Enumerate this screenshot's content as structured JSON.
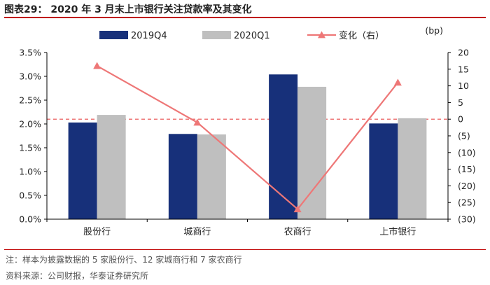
{
  "title": "图表29： 2020 年 3 月末上市银行关注贷款率及其变化",
  "note": "注：样本为披露数据的 5 家股份行、12 家城商行和 7 家农商行",
  "source": "资料来源：公司财报，华泰证券研究所",
  "colors": {
    "q4": "#17307a",
    "q1": "#bfbfbf",
    "change": "#ee7777",
    "rule": "#c00000"
  },
  "chart_data": {
    "type": "bar",
    "categories": [
      "股份行",
      "城商行",
      "农商行",
      "上市银行"
    ],
    "series": [
      {
        "name": "2019Q4",
        "type": "bar",
        "axis": "left",
        "values": [
          2.03,
          1.79,
          3.04,
          2.01
        ]
      },
      {
        "name": "2020Q1",
        "type": "bar",
        "axis": "left",
        "values": [
          2.19,
          1.78,
          2.78,
          2.12
        ]
      },
      {
        "name": "变化（右）",
        "type": "line",
        "axis": "right",
        "values": [
          16,
          -1,
          -27,
          11
        ]
      }
    ],
    "y_left": {
      "min": 0,
      "max": 3.5,
      "ticks": [
        "0.0%",
        "0.5%",
        "1.0%",
        "1.5%",
        "2.0%",
        "2.5%",
        "3.0%",
        "3.5%"
      ]
    },
    "y_right": {
      "min": -30,
      "max": 20,
      "ticks": [
        "20",
        "15",
        "10",
        "5",
        "0",
        "(5)",
        "(10)",
        "(15)",
        "(20)",
        "(25)",
        "(30)"
      ],
      "unit": "(bp)"
    },
    "legend_position": "top",
    "grid": false,
    "reference_line": {
      "axis": "right",
      "value": 0,
      "style": "dashed"
    }
  }
}
